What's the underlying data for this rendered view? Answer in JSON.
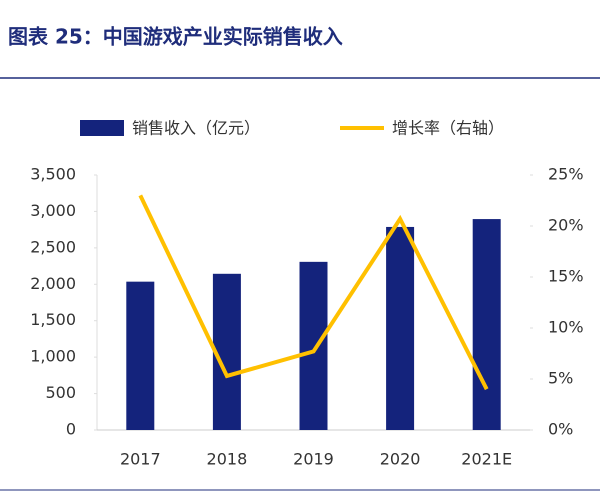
{
  "chart_data": {
    "type": "bar-line",
    "title": "图表 25：中国游戏产业实际销售收入",
    "categories": [
      "2017",
      "2018",
      "2019",
      "2020",
      "2021E"
    ],
    "series": [
      {
        "name": "销售收入（亿元）",
        "type": "bar",
        "color": "#14237c",
        "values": [
          2036,
          2144,
          2308,
          2787,
          2895
        ]
      },
      {
        "name": "增长率（右轴）",
        "type": "line",
        "axis": "y2",
        "color": "#ffc000",
        "values": [
          23.0,
          5.3,
          7.7,
          20.7,
          4.0
        ]
      }
    ],
    "ylim": [
      0,
      3500
    ],
    "yticks": [
      0,
      500,
      {
        "value": 1000,
        "label": "1,000"
      },
      {
        "value": 1500,
        "label": "1,500"
      },
      {
        "value": 2000,
        "label": "2,000"
      },
      {
        "value": 2500,
        "label": "2,500"
      },
      {
        "value": 3000,
        "label": "3,000"
      },
      {
        "value": 3500,
        "label": "3,500"
      }
    ],
    "y2lim": [
      0,
      25
    ],
    "y2ticks": [
      {
        "value": 0,
        "label": "0%"
      },
      {
        "value": 5,
        "label": "5%"
      },
      {
        "value": 10,
        "label": "10%"
      },
      {
        "value": 15,
        "label": "15%"
      },
      {
        "value": 20,
        "label": "20%"
      },
      {
        "value": 25,
        "label": "25%"
      }
    ],
    "grid": false
  }
}
